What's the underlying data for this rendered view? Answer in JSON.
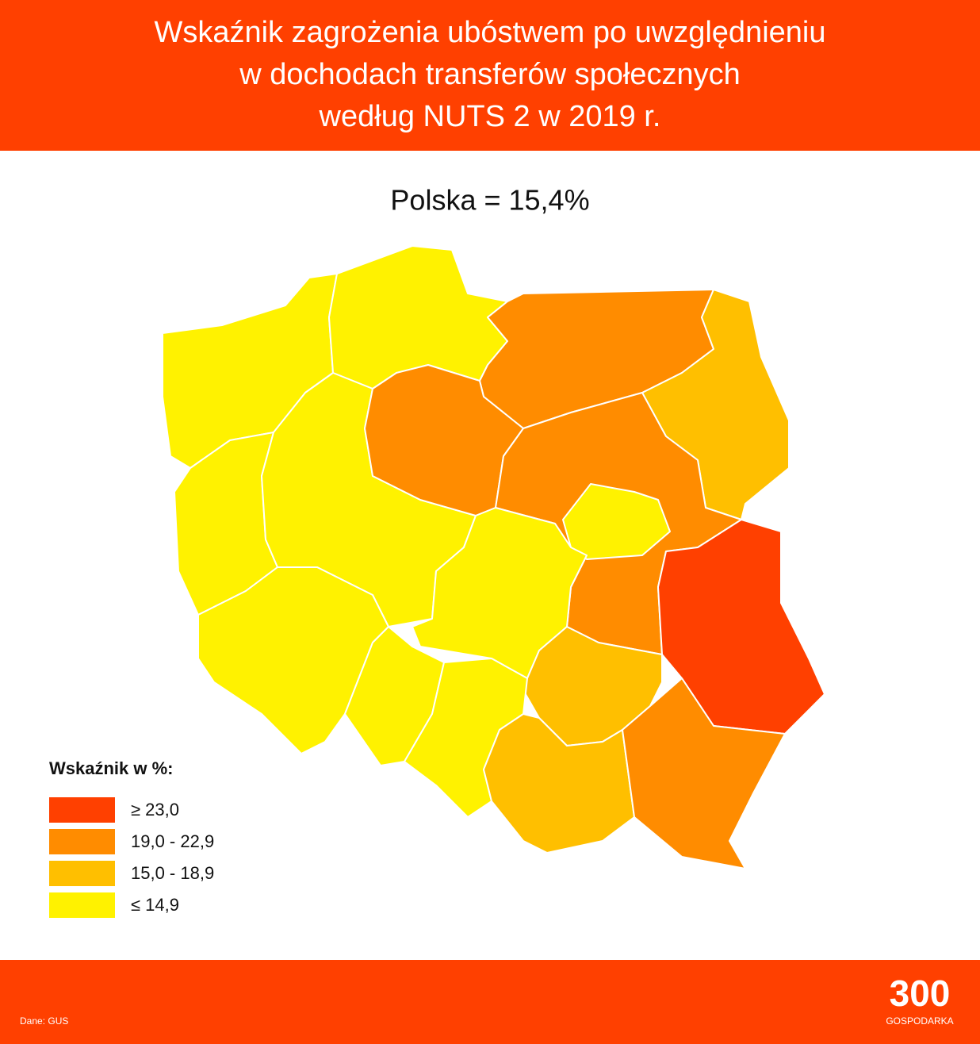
{
  "header": {
    "title_lines": [
      "Wskaźnik zagrożenia ubóstwem po uwzględnieniu",
      "w dochodach transferów społecznych",
      "według NUTS 2 w 2019 r."
    ]
  },
  "subtitle": "Polska = 15,4%",
  "legend": {
    "title": "Wskaźnik w %:",
    "items": [
      {
        "label": "≥ 23,0",
        "color": "#ff4000"
      },
      {
        "label": "19,0 - 22,9",
        "color": "#ff8c00"
      },
      {
        "label": "15,0 - 18,9",
        "color": "#ffbf00"
      },
      {
        "label": "≤ 14,9",
        "color": "#fff200"
      }
    ]
  },
  "footer": {
    "source": "Dane: GUS",
    "logo": "300",
    "logo_sub": "GOSPODARKA"
  }
}
